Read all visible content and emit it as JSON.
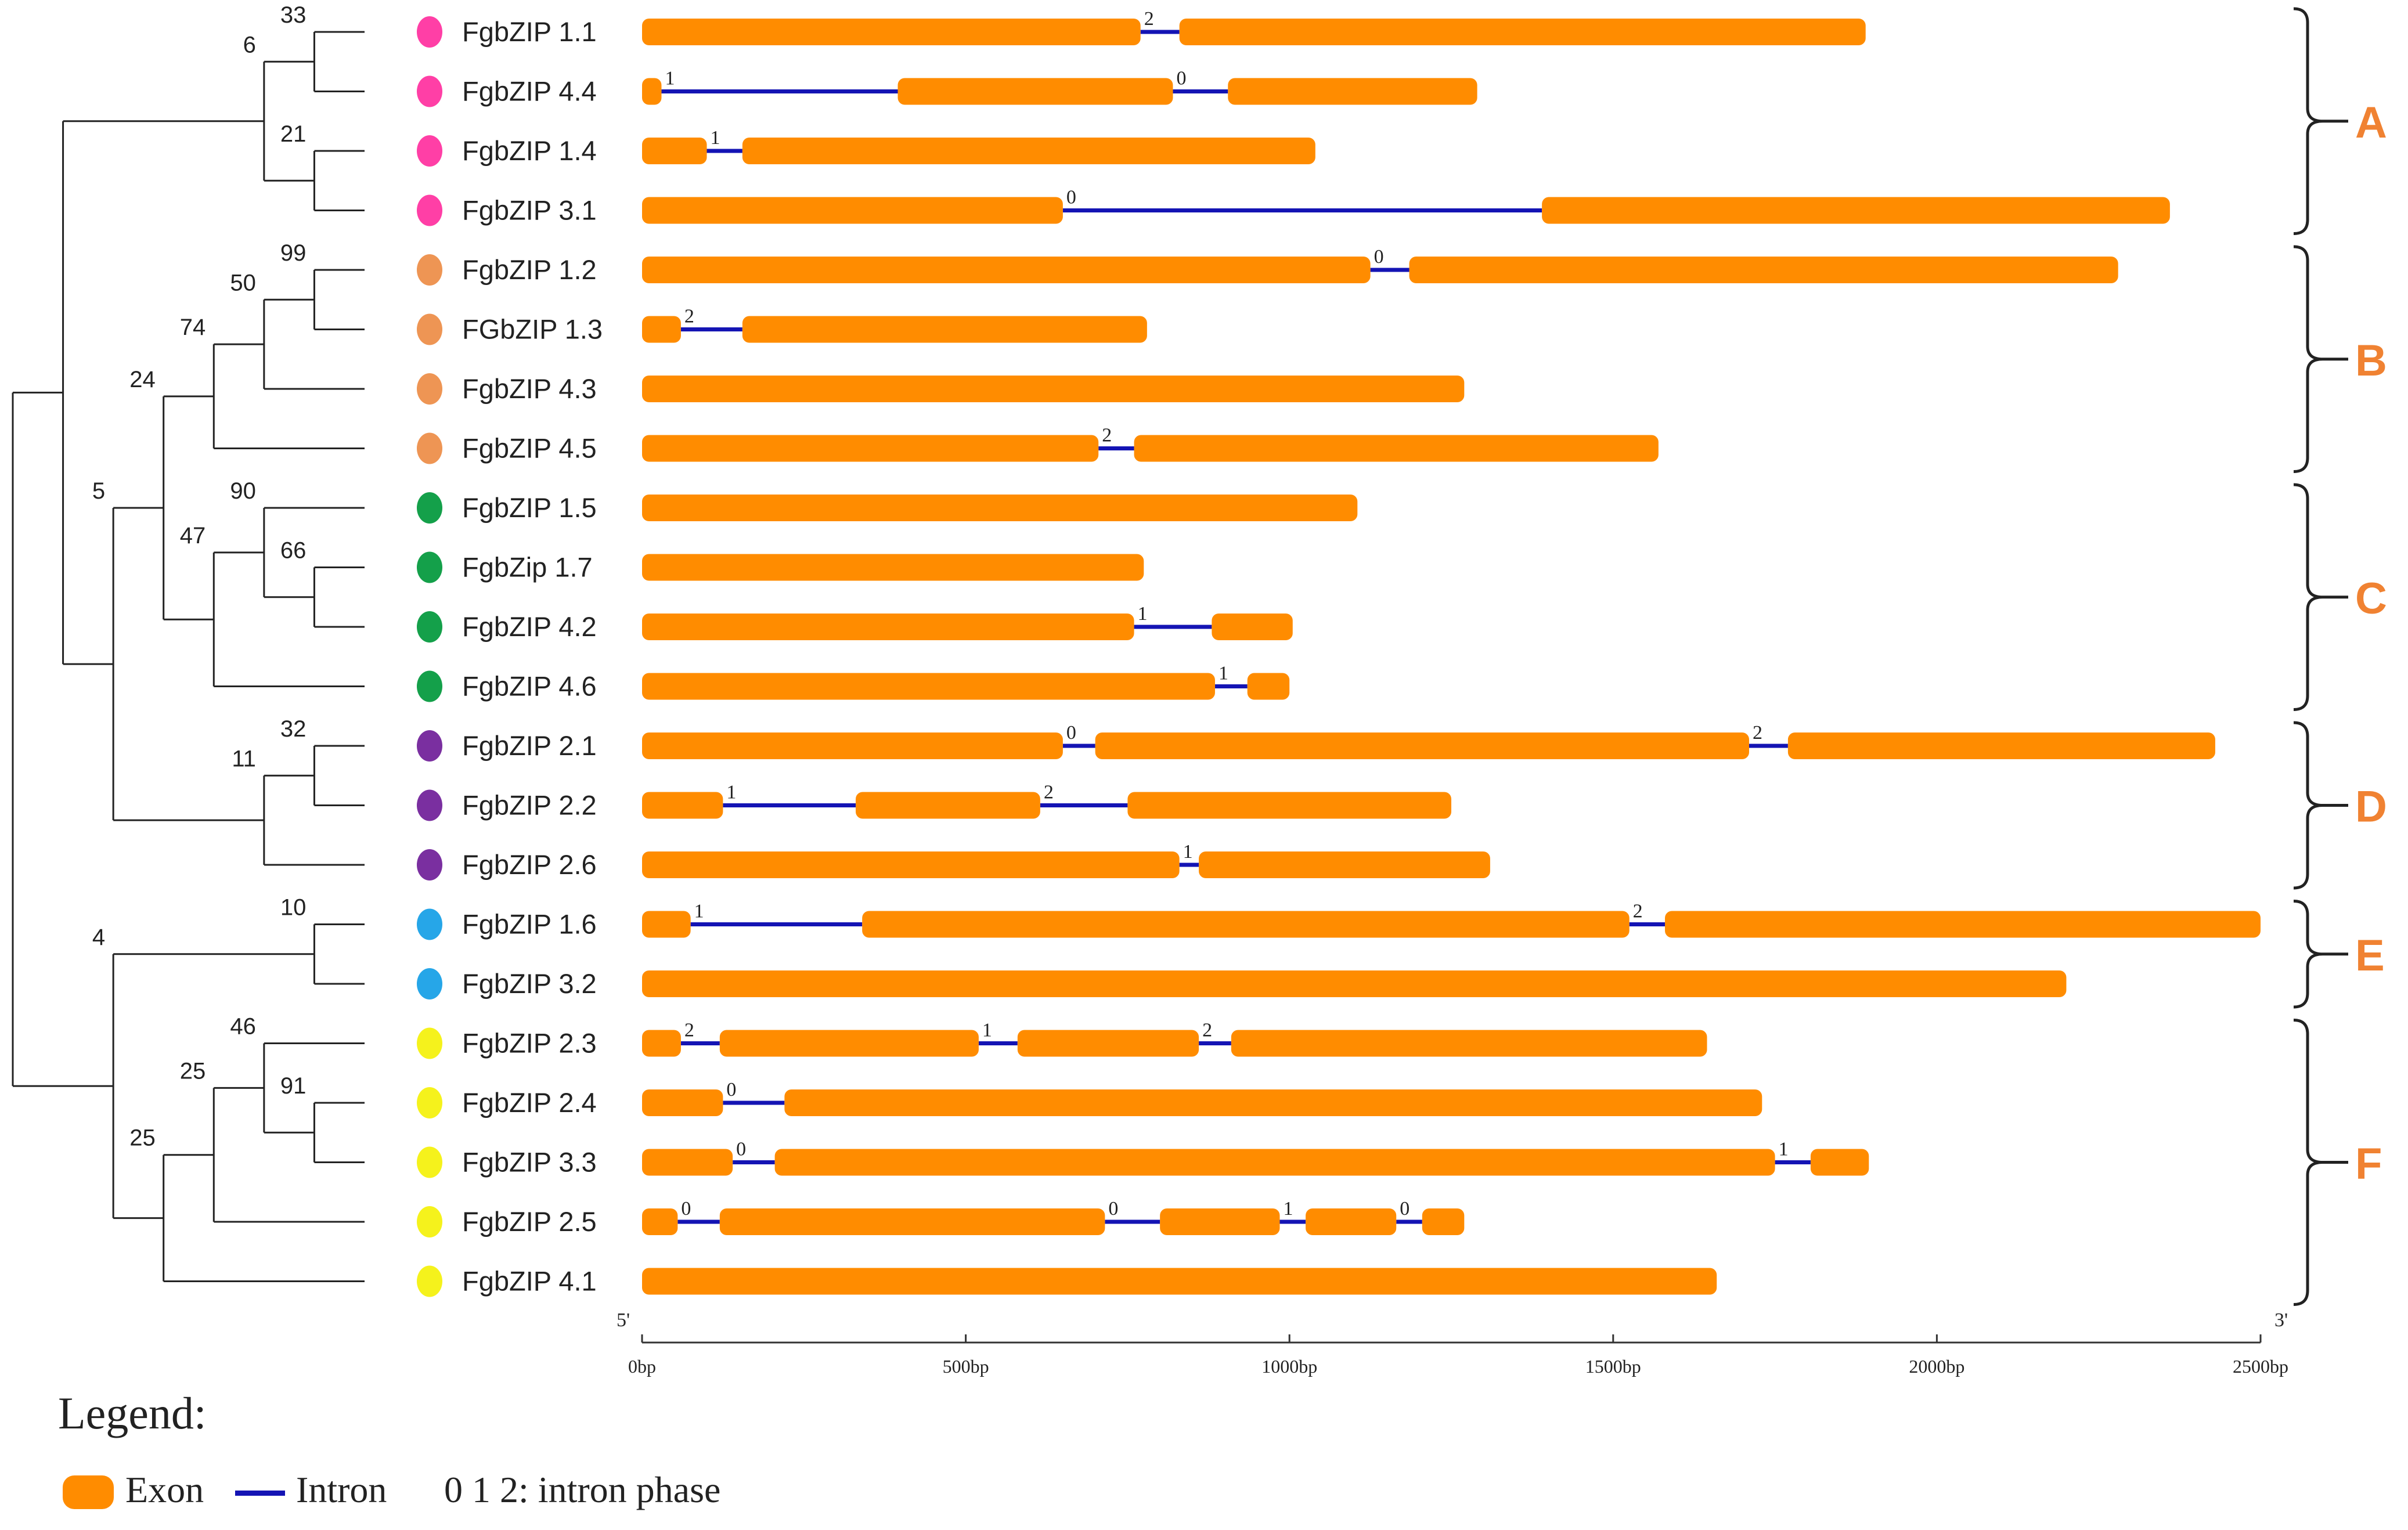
{
  "colors": {
    "exon": "#ff8c00",
    "intron": "#1414b4",
    "tree": "#222222",
    "bracket": "#222222",
    "group_label": "#f08232",
    "group_A": "#ff3fa6",
    "group_B": "#ee9554",
    "group_C": "#14a04a",
    "group_D": "#7a2fa0",
    "group_E": "#26a6e8",
    "group_F": "#f5f21c"
  },
  "genes": [
    {
      "name": "FgbZIP 1.1",
      "group": "A",
      "exons": [
        [
          0,
          770
        ],
        [
          830,
          1890
        ]
      ],
      "introns": [
        {
          "start": 770,
          "end": 830,
          "phase": "2"
        }
      ]
    },
    {
      "name": "FgbZIP 4.4",
      "group": "A",
      "exons": [
        [
          0,
          30
        ],
        [
          395,
          820
        ],
        [
          905,
          1290
        ]
      ],
      "introns": [
        {
          "start": 30,
          "end": 395,
          "phase": "1"
        },
        {
          "start": 820,
          "end": 905,
          "phase": "0"
        }
      ]
    },
    {
      "name": "FgbZIP 1.4",
      "group": "A",
      "exons": [
        [
          0,
          100
        ],
        [
          155,
          1040
        ]
      ],
      "introns": [
        {
          "start": 100,
          "end": 155,
          "phase": "1"
        }
      ]
    },
    {
      "name": "FgbZIP 3.1",
      "group": "A",
      "exons": [
        [
          0,
          650
        ],
        [
          1390,
          2360
        ]
      ],
      "introns": [
        {
          "start": 650,
          "end": 1390,
          "phase": "0"
        }
      ]
    },
    {
      "name": "FgbZIP 1.2",
      "group": "B",
      "exons": [
        [
          0,
          1125
        ],
        [
          1185,
          2280
        ]
      ],
      "introns": [
        {
          "start": 1125,
          "end": 1185,
          "phase": "0"
        }
      ]
    },
    {
      "name": "FGbZIP 1.3",
      "group": "B",
      "exons": [
        [
          0,
          60
        ],
        [
          155,
          780
        ]
      ],
      "introns": [
        {
          "start": 60,
          "end": 155,
          "phase": "2"
        }
      ]
    },
    {
      "name": "FgbZIP 4.3",
      "group": "B",
      "exons": [
        [
          0,
          1270
        ]
      ],
      "introns": []
    },
    {
      "name": "FgbZIP 4.5",
      "group": "B",
      "exons": [
        [
          0,
          705
        ],
        [
          760,
          1570
        ]
      ],
      "introns": [
        {
          "start": 705,
          "end": 760,
          "phase": "2"
        }
      ]
    },
    {
      "name": "FgbZIP 1.5",
      "group": "C",
      "exons": [
        [
          0,
          1105
        ]
      ],
      "introns": []
    },
    {
      "name": "FgbZip 1.7",
      "group": "C",
      "exons": [
        [
          0,
          775
        ]
      ],
      "introns": []
    },
    {
      "name": "FgbZIP 4.2",
      "group": "C",
      "exons": [
        [
          0,
          760
        ],
        [
          880,
          1005
        ]
      ],
      "introns": [
        {
          "start": 760,
          "end": 880,
          "phase": "1"
        }
      ]
    },
    {
      "name": "FgbZIP 4.6",
      "group": "C",
      "exons": [
        [
          0,
          885
        ],
        [
          935,
          1000
        ]
      ],
      "introns": [
        {
          "start": 885,
          "end": 935,
          "phase": "1"
        }
      ]
    },
    {
      "name": "FgbZIP 2.1",
      "group": "D",
      "exons": [
        [
          0,
          650
        ],
        [
          700,
          1710
        ],
        [
          1770,
          2430
        ]
      ],
      "introns": [
        {
          "start": 650,
          "end": 700,
          "phase": "0"
        },
        {
          "start": 1710,
          "end": 1770,
          "phase": "2"
        }
      ]
    },
    {
      "name": "FgbZIP 2.2",
      "group": "D",
      "exons": [
        [
          0,
          125
        ],
        [
          330,
          615
        ],
        [
          750,
          1250
        ]
      ],
      "introns": [
        {
          "start": 125,
          "end": 330,
          "phase": "1"
        },
        {
          "start": 615,
          "end": 750,
          "phase": "2"
        }
      ]
    },
    {
      "name": "FgbZIP 2.6",
      "group": "D",
      "exons": [
        [
          0,
          830
        ],
        [
          860,
          1310
        ]
      ],
      "introns": [
        {
          "start": 830,
          "end": 860,
          "phase": "1"
        }
      ]
    },
    {
      "name": "FgbZIP 1.6",
      "group": "E",
      "exons": [
        [
          0,
          75
        ],
        [
          340,
          1525
        ],
        [
          1580,
          2500
        ]
      ],
      "introns": [
        {
          "start": 75,
          "end": 340,
          "phase": "1"
        },
        {
          "start": 1525,
          "end": 1580,
          "phase": "2"
        }
      ]
    },
    {
      "name": "FgbZIP 3.2",
      "group": "E",
      "exons": [
        [
          0,
          2200
        ]
      ],
      "introns": []
    },
    {
      "name": "FgbZIP 2.3",
      "group": "F",
      "exons": [
        [
          0,
          60
        ],
        [
          120,
          520
        ],
        [
          580,
          860
        ],
        [
          910,
          1645
        ]
      ],
      "introns": [
        {
          "start": 60,
          "end": 120,
          "phase": "2"
        },
        {
          "start": 520,
          "end": 580,
          "phase": "1"
        },
        {
          "start": 860,
          "end": 910,
          "phase": "2"
        }
      ]
    },
    {
      "name": "FgbZIP 2.4",
      "group": "F",
      "exons": [
        [
          0,
          125
        ],
        [
          220,
          1730
        ]
      ],
      "introns": [
        {
          "start": 125,
          "end": 220,
          "phase": "0"
        }
      ]
    },
    {
      "name": "FgbZIP 3.3",
      "group": "F",
      "exons": [
        [
          0,
          140
        ],
        [
          205,
          1750
        ],
        [
          1805,
          1895
        ]
      ],
      "introns": [
        {
          "start": 140,
          "end": 205,
          "phase": "0"
        },
        {
          "start": 1750,
          "end": 1805,
          "phase": "1"
        }
      ]
    },
    {
      "name": "FgbZIP 2.5",
      "group": "F",
      "exons": [
        [
          0,
          55
        ],
        [
          120,
          715
        ],
        [
          800,
          985
        ],
        [
          1025,
          1165
        ],
        [
          1205,
          1270
        ]
      ],
      "introns": [
        {
          "start": 55,
          "end": 120,
          "phase": "0"
        },
        {
          "start": 715,
          "end": 800,
          "phase": "0"
        },
        {
          "start": 985,
          "end": 1025,
          "phase": "1"
        },
        {
          "start": 1165,
          "end": 1205,
          "phase": "0"
        }
      ]
    },
    {
      "name": "FgbZIP 4.1",
      "group": "F",
      "exons": [
        [
          0,
          1660
        ]
      ],
      "introns": []
    }
  ],
  "groups": [
    {
      "label": "A",
      "first": 0,
      "last": 3
    },
    {
      "label": "B",
      "first": 4,
      "last": 7
    },
    {
      "label": "C",
      "first": 8,
      "last": 11
    },
    {
      "label": "D",
      "first": 12,
      "last": 14
    },
    {
      "label": "E",
      "first": 15,
      "last": 16
    },
    {
      "label": "F",
      "first": 17,
      "last": 21
    }
  ],
  "tree": {
    "children": [
      {
        "children": [
          {
            "bootstrap": "6",
            "children": [
              {
                "bootstrap": "33",
                "children": [
                  {
                    "leaf": 0
                  },
                  {
                    "leaf": 1
                  }
                ]
              },
              {
                "bootstrap": "21",
                "children": [
                  {
                    "leaf": 2
                  },
                  {
                    "leaf": 3
                  }
                ]
              }
            ]
          },
          {
            "bootstrap": "5",
            "children": [
              {
                "bootstrap": "24",
                "children": [
                  {
                    "bootstrap": "74",
                    "children": [
                      {
                        "bootstrap": "50",
                        "children": [
                          {
                            "bootstrap": "99",
                            "children": [
                              {
                                "leaf": 4
                              },
                              {
                                "leaf": 5
                              }
                            ]
                          },
                          {
                            "leaf": 6
                          }
                        ]
                      },
                      {
                        "leaf": 7
                      }
                    ]
                  },
                  {
                    "bootstrap": "47",
                    "children": [
                      {
                        "bootstrap": "90",
                        "children": [
                          {
                            "leaf": 8
                          },
                          {
                            "bootstrap": "66",
                            "children": [
                              {
                                "leaf": 9
                              },
                              {
                                "leaf": 10
                              }
                            ]
                          }
                        ]
                      },
                      {
                        "leaf": 11
                      }
                    ]
                  }
                ]
              },
              {
                "bootstrap": "11",
                "children": [
                  {
                    "bootstrap": "32",
                    "children": [
                      {
                        "leaf": 12
                      },
                      {
                        "leaf": 13
                      }
                    ]
                  },
                  {
                    "leaf": 14
                  }
                ]
              }
            ]
          }
        ]
      },
      {
        "bootstrap": "4",
        "children": [
          {
            "bootstrap": "10",
            "children": [
              {
                "leaf": 15
              },
              {
                "leaf": 16
              }
            ]
          },
          {
            "bootstrap": "25",
            "children": [
              {
                "bootstrap": "25",
                "children": [
                  {
                    "bootstrap": "46",
                    "children": [
                      {
                        "leaf": 17
                      },
                      {
                        "bootstrap": "91",
                        "children": [
                          {
                            "leaf": 18
                          },
                          {
                            "leaf": 19
                          }
                        ]
                      }
                    ]
                  },
                  {
                    "leaf": 20
                  }
                ]
              },
              {
                "leaf": 21
              }
            ]
          }
        ]
      }
    ]
  },
  "axis": {
    "min": 0,
    "max": 2500,
    "ticks": [
      {
        "value": 0,
        "label": "0bp"
      },
      {
        "value": 500,
        "label": "500bp"
      },
      {
        "value": 1000,
        "label": "1000bp"
      },
      {
        "value": 1500,
        "label": "1500bp"
      },
      {
        "value": 2000,
        "label": "2000bp"
      },
      {
        "value": 2500,
        "label": "2500bp"
      }
    ],
    "five_prime": "5'",
    "three_prime": "3'"
  },
  "legend": {
    "title": "Legend:",
    "exon": "Exon",
    "intron": "Intron",
    "phase": "0 1 2: intron phase"
  }
}
